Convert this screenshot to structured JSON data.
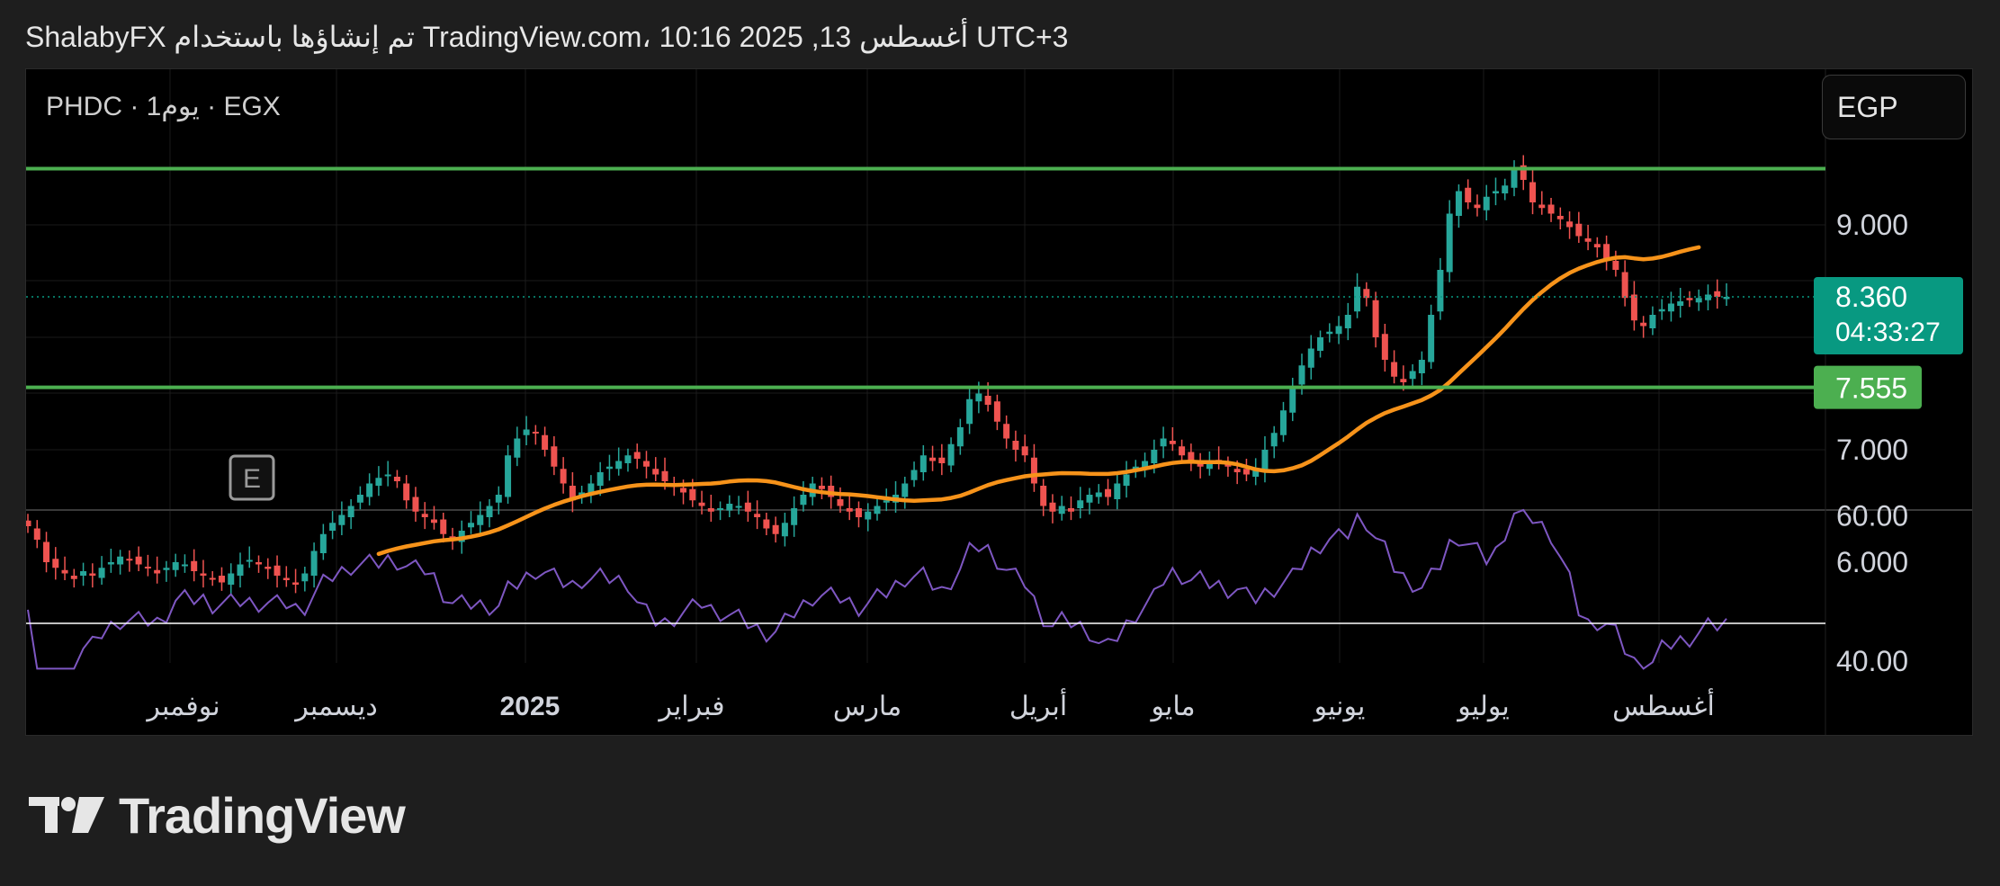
{
  "header": {
    "caption": "ShalabyFX تم إنشاؤها باستخدام TradingView.com، 10:16 2025 ,13 أغسطس UTC+3"
  },
  "chart": {
    "symbol_label": "PHDC · 1يوم · EGX",
    "currency": "EGP",
    "earnings_marker": "E",
    "price_axis_ticks": [
      "9.000",
      "7.000",
      "6.000"
    ],
    "rsi_axis_ticks": [
      "60.00",
      "40.00"
    ],
    "last_price": "8.360",
    "countdown": "04:33:27",
    "level_price_label": "7.555"
  },
  "brand": {
    "name": "TradingView"
  },
  "chart_data": {
    "type": "candlestick",
    "x_tick_labels": [
      "نوفمبر",
      "ديسمبر",
      "2025",
      "فبراير",
      "مارس",
      "أبريل",
      "مايو",
      "يونيو",
      "يوليو",
      "أغسطس"
    ],
    "price_ylim": [
      6.0,
      9.6
    ],
    "rsi_ylim": [
      38,
      61
    ],
    "horizontal_lines": [
      9.5,
      7.555
    ],
    "rsi_reference_line": 45,
    "last_price": 8.36,
    "grid": true,
    "colors": {
      "up": "#26a69a",
      "down": "#ef5350",
      "ma": "#f7931a",
      "rsi": "#7e57c2",
      "level": "#4caf50",
      "last_price_label": "#089981",
      "level_label": "#4caf50"
    },
    "close_series": [
      6.32,
      6.2,
      6.0,
      5.95,
      5.9,
      5.85,
      5.92,
      5.88,
      5.95,
      6.0,
      6.05,
      6.02,
      5.98,
      5.95,
      5.9,
      5.95,
      6.0,
      5.98,
      5.92,
      5.88,
      5.85,
      5.82,
      5.9,
      5.98,
      6.02,
      5.98,
      5.94,
      5.88,
      5.84,
      5.8,
      5.9,
      6.1,
      6.25,
      6.35,
      6.42,
      6.5,
      6.6,
      6.7,
      6.75,
      6.78,
      6.72,
      6.55,
      6.45,
      6.4,
      6.35,
      6.25,
      6.2,
      6.28,
      6.35,
      6.42,
      6.5,
      6.6,
      6.95,
      7.1,
      7.18,
      7.15,
      7.0,
      6.85,
      6.7,
      6.55,
      6.62,
      6.7,
      6.8,
      6.85,
      6.9,
      6.95,
      6.92,
      6.85,
      6.78,
      6.72,
      6.68,
      6.62,
      6.55,
      6.5,
      6.45,
      6.48,
      6.52,
      6.5,
      6.45,
      6.4,
      6.3,
      6.25,
      6.35,
      6.48,
      6.6,
      6.7,
      6.65,
      6.58,
      6.5,
      6.45,
      6.4,
      6.45,
      6.5,
      6.55,
      6.6,
      6.7,
      6.82,
      6.95,
      6.9,
      6.88,
      7.05,
      7.2,
      7.45,
      7.5,
      7.4,
      7.25,
      7.1,
      7.0,
      6.95,
      6.7,
      6.5,
      6.45,
      6.5,
      6.45,
      6.55,
      6.6,
      6.62,
      6.58,
      6.7,
      6.78,
      6.85,
      6.9,
      7.0,
      7.1,
      7.05,
      6.95,
      6.9,
      6.85,
      6.88,
      6.9,
      6.85,
      6.8,
      6.78,
      6.82,
      7.0,
      7.15,
      7.35,
      7.55,
      7.75,
      7.9,
      8.0,
      8.05,
      8.1,
      8.2,
      8.45,
      8.35,
      8.0,
      7.8,
      7.65,
      7.6,
      7.7,
      7.8,
      8.2,
      8.6,
      9.1,
      9.3,
      9.2,
      9.15,
      9.25,
      9.3,
      9.35,
      9.5,
      9.4,
      9.2,
      9.15,
      9.1,
      9.05,
      8.98,
      8.9,
      8.85,
      8.8,
      8.7,
      8.6,
      8.35,
      8.15,
      8.1,
      8.2,
      8.25,
      8.3,
      8.32,
      8.33,
      8.35,
      8.38,
      8.36,
      8.36
    ]
  }
}
